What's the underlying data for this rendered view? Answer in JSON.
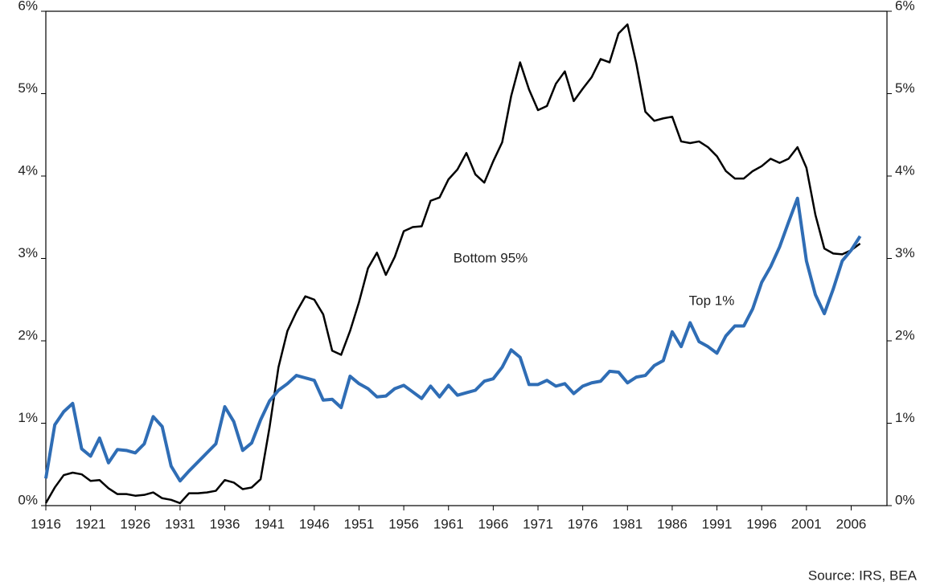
{
  "chart_data": {
    "type": "line",
    "x": [
      1916,
      1917,
      1918,
      1919,
      1920,
      1921,
      1922,
      1923,
      1924,
      1925,
      1926,
      1927,
      1928,
      1929,
      1930,
      1931,
      1932,
      1933,
      1934,
      1935,
      1936,
      1937,
      1938,
      1939,
      1940,
      1941,
      1942,
      1943,
      1944,
      1945,
      1946,
      1947,
      1948,
      1949,
      1950,
      1951,
      1952,
      1953,
      1954,
      1955,
      1956,
      1957,
      1958,
      1959,
      1960,
      1961,
      1962,
      1963,
      1964,
      1965,
      1966,
      1967,
      1968,
      1969,
      1970,
      1971,
      1972,
      1973,
      1974,
      1975,
      1976,
      1977,
      1978,
      1979,
      1980,
      1981,
      1982,
      1983,
      1984,
      1985,
      1986,
      1987,
      1988,
      1989,
      1990,
      1991,
      1992,
      1993,
      1994,
      1995,
      1996,
      1997,
      1998,
      1999,
      2000,
      2001,
      2002,
      2003,
      2004,
      2005,
      2006,
      2007
    ],
    "series": [
      {
        "name": "Bottom 95%",
        "color": "#000000",
        "width": 2.5,
        "values": [
          0.03,
          0.22,
          0.37,
          0.4,
          0.38,
          0.3,
          0.31,
          0.21,
          0.14,
          0.14,
          0.12,
          0.13,
          0.16,
          0.09,
          0.07,
          0.03,
          0.15,
          0.15,
          0.16,
          0.18,
          0.31,
          0.28,
          0.2,
          0.22,
          0.32,
          0.95,
          1.68,
          2.12,
          2.35,
          2.54,
          2.5,
          2.32,
          1.88,
          1.83,
          2.12,
          2.47,
          2.88,
          3.07,
          2.8,
          3.02,
          3.33,
          3.38,
          3.39,
          3.7,
          3.74,
          3.96,
          4.08,
          4.28,
          4.02,
          3.92,
          4.18,
          4.41,
          4.97,
          5.38,
          5.05,
          4.8,
          4.85,
          5.12,
          5.27,
          4.91,
          5.06,
          5.2,
          5.42,
          5.38,
          5.73,
          5.84,
          5.36,
          4.78,
          4.67,
          4.7,
          4.72,
          4.42,
          4.4,
          4.42,
          4.35,
          4.24,
          4.06,
          3.97,
          3.97,
          4.06,
          4.12,
          4.21,
          4.16,
          4.21,
          4.35,
          4.1,
          3.53,
          3.12,
          3.06,
          3.05,
          3.1,
          3.18
        ]
      },
      {
        "name": "Top 1%",
        "color": "#2f6db5",
        "width": 4,
        "values": [
          0.33,
          0.98,
          1.14,
          1.24,
          0.69,
          0.6,
          0.82,
          0.52,
          0.68,
          0.67,
          0.64,
          0.75,
          1.08,
          0.96,
          0.48,
          0.3,
          0.42,
          0.53,
          0.64,
          0.75,
          1.2,
          1.02,
          0.67,
          0.76,
          1.04,
          1.27,
          1.4,
          1.48,
          1.58,
          1.55,
          1.52,
          1.28,
          1.29,
          1.19,
          1.57,
          1.48,
          1.42,
          1.32,
          1.33,
          1.42,
          1.46,
          1.38,
          1.3,
          1.45,
          1.32,
          1.46,
          1.34,
          1.37,
          1.4,
          1.51,
          1.54,
          1.68,
          1.89,
          1.8,
          1.47,
          1.47,
          1.52,
          1.45,
          1.48,
          1.36,
          1.45,
          1.49,
          1.51,
          1.63,
          1.62,
          1.49,
          1.56,
          1.58,
          1.7,
          1.76,
          2.11,
          1.93,
          2.22,
          1.99,
          1.93,
          1.85,
          2.06,
          2.18,
          2.18,
          2.39,
          2.71,
          2.9,
          3.14,
          3.44,
          3.73,
          2.97,
          2.56,
          2.33,
          2.63,
          2.97,
          3.1,
          3.27
        ]
      }
    ],
    "xlim": [
      1916,
      2010
    ],
    "xticks": [
      1916,
      1921,
      1926,
      1931,
      1936,
      1941,
      1946,
      1951,
      1956,
      1961,
      1966,
      1971,
      1976,
      1981,
      1986,
      1991,
      1996,
      2001,
      2006
    ],
    "ylim": [
      0,
      6
    ],
    "yticks": [
      {
        "value": 0,
        "label": "0%"
      },
      {
        "value": 1,
        "label": "1%"
      },
      {
        "value": 2,
        "label": "2%"
      },
      {
        "value": 3,
        "label": "3%"
      },
      {
        "value": 4,
        "label": "4%"
      },
      {
        "value": 5,
        "label": "5%"
      },
      {
        "value": 6,
        "label": "6%"
      }
    ],
    "y2lim": [
      0,
      6
    ],
    "y2ticks": [
      {
        "value": 0,
        "label": "0%"
      },
      {
        "value": 1,
        "label": "1%"
      },
      {
        "value": 2,
        "label": "2%"
      },
      {
        "value": 3,
        "label": "3%"
      },
      {
        "value": 4,
        "label": "4%"
      },
      {
        "value": 5,
        "label": "5%"
      },
      {
        "value": 6,
        "label": "6%"
      }
    ],
    "source": "Source: IRS, BEA"
  }
}
